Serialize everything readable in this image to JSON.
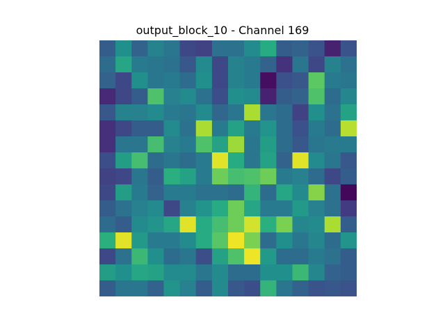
{
  "chart_data": {
    "type": "heatmap",
    "title": "output_block_10 - Channel 169",
    "colormap": "viridis",
    "rows": 16,
    "cols": 16,
    "vmin": 0,
    "vmax": 1,
    "values": [
      [
        0.3,
        0.5,
        0.32,
        0.45,
        0.4,
        0.22,
        0.2,
        0.38,
        0.38,
        0.48,
        0.62,
        0.3,
        0.32,
        0.26,
        0.1,
        0.26
      ],
      [
        0.36,
        0.6,
        0.42,
        0.4,
        0.38,
        0.28,
        0.48,
        0.22,
        0.45,
        0.42,
        0.32,
        0.15,
        0.4,
        0.22,
        0.45,
        0.38
      ],
      [
        0.32,
        0.22,
        0.5,
        0.4,
        0.42,
        0.36,
        0.5,
        0.22,
        0.45,
        0.42,
        0.04,
        0.25,
        0.28,
        0.75,
        0.42,
        0.4
      ],
      [
        0.12,
        0.22,
        0.3,
        0.72,
        0.44,
        0.48,
        0.38,
        0.24,
        0.5,
        0.48,
        0.1,
        0.3,
        0.32,
        0.72,
        0.36,
        0.46
      ],
      [
        0.28,
        0.45,
        0.44,
        0.48,
        0.42,
        0.4,
        0.48,
        0.34,
        0.4,
        0.88,
        0.4,
        0.36,
        0.2,
        0.5,
        0.38,
        0.58
      ],
      [
        0.14,
        0.22,
        0.3,
        0.3,
        0.48,
        0.38,
        0.88,
        0.42,
        0.58,
        0.42,
        0.52,
        0.36,
        0.25,
        0.42,
        0.36,
        0.9
      ],
      [
        0.14,
        0.4,
        0.4,
        0.7,
        0.44,
        0.42,
        0.72,
        0.58,
        0.86,
        0.4,
        0.56,
        0.36,
        0.28,
        0.4,
        0.42,
        0.42
      ],
      [
        0.24,
        0.56,
        0.7,
        0.36,
        0.4,
        0.36,
        0.42,
        0.96,
        0.62,
        0.4,
        0.58,
        0.32,
        0.96,
        0.48,
        0.4,
        0.28
      ],
      [
        0.2,
        0.22,
        0.4,
        0.3,
        0.64,
        0.58,
        0.42,
        0.78,
        0.7,
        0.72,
        0.78,
        0.42,
        0.44,
        0.36,
        0.22,
        0.3
      ],
      [
        0.22,
        0.56,
        0.42,
        0.32,
        0.42,
        0.42,
        0.38,
        0.38,
        0.36,
        0.66,
        0.36,
        0.6,
        0.48,
        0.82,
        0.38,
        0.02
      ],
      [
        0.3,
        0.38,
        0.44,
        0.48,
        0.22,
        0.44,
        0.52,
        0.62,
        0.78,
        0.6,
        0.42,
        0.42,
        0.54,
        0.44,
        0.38,
        0.18
      ],
      [
        0.36,
        0.3,
        0.48,
        0.52,
        0.6,
        0.96,
        0.62,
        0.7,
        0.78,
        0.94,
        0.64,
        0.8,
        0.46,
        0.48,
        0.88,
        0.3
      ],
      [
        0.64,
        0.96,
        0.54,
        0.42,
        0.42,
        0.48,
        0.62,
        0.74,
        0.98,
        0.8,
        0.36,
        0.5,
        0.4,
        0.46,
        0.36,
        0.52
      ],
      [
        0.22,
        0.38,
        0.68,
        0.5,
        0.36,
        0.4,
        0.24,
        0.58,
        0.72,
        0.98,
        0.54,
        0.36,
        0.36,
        0.42,
        0.38,
        0.3
      ],
      [
        0.56,
        0.5,
        0.6,
        0.58,
        0.48,
        0.48,
        0.4,
        0.48,
        0.36,
        0.36,
        0.5,
        0.5,
        0.68,
        0.46,
        0.32,
        0.3
      ],
      [
        0.3,
        0.4,
        0.4,
        0.32,
        0.52,
        0.44,
        0.3,
        0.48,
        0.28,
        0.24,
        0.66,
        0.4,
        0.32,
        0.26,
        0.28,
        0.26
      ]
    ]
  }
}
